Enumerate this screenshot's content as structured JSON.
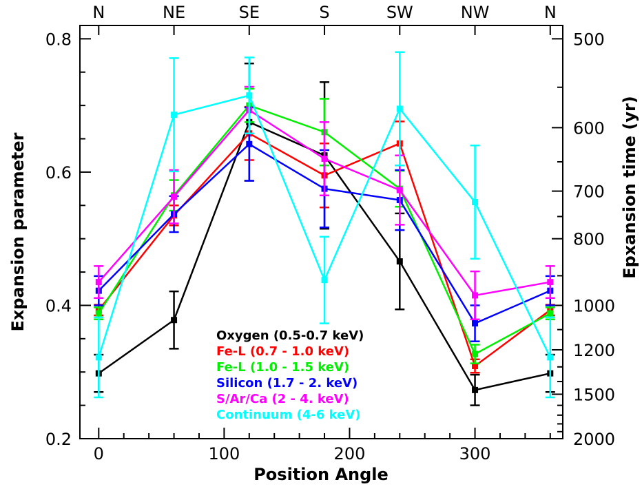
{
  "chart_data": {
    "type": "line",
    "xlabel": "Position Angle",
    "ylabel": "Expansion parameter",
    "y2label": "Epxansion time (yr)",
    "xlim": [
      -15,
      370
    ],
    "ylim": [
      0.2,
      0.82
    ],
    "x_ticks": [
      "0",
      "100",
      "200",
      "300"
    ],
    "y_ticks": [
      "0.2",
      "0.4",
      "0.6",
      "0.8"
    ],
    "top_ticks": [
      {
        "x": 0,
        "label": "N"
      },
      {
        "x": 60,
        "label": "NE"
      },
      {
        "x": 120,
        "label": "SE"
      },
      {
        "x": 180,
        "label": "S"
      },
      {
        "x": 240,
        "label": "SW"
      },
      {
        "x": 300,
        "label": "NW"
      },
      {
        "x": 360,
        "label": "N"
      }
    ],
    "right_ticks": [
      {
        "value": 500,
        "label": "500"
      },
      {
        "value": 600,
        "label": "600"
      },
      {
        "value": 700,
        "label": "700"
      },
      {
        "value": 800,
        "label": "800"
      },
      {
        "value": 1000,
        "label": "1000"
      },
      {
        "value": 1200,
        "label": "1200"
      },
      {
        "value": 1500,
        "label": "1500"
      },
      {
        "value": 2000,
        "label": "2000"
      }
    ],
    "grid": false,
    "legend_position": "bottom-center",
    "series": [
      {
        "name": "Oxygen (0.5-0.7 keV)",
        "color": "#000000",
        "x": [
          0,
          60,
          120,
          180,
          240,
          300,
          360
        ],
        "y": [
          0.298,
          0.378,
          0.675,
          0.625,
          0.466,
          0.273,
          0.298
        ],
        "err": [
          0.028,
          0.043,
          0.088,
          0.11,
          0.072,
          0.023,
          0.028
        ]
      },
      {
        "name": "Fe-L (0.7 - 1.0 keV)",
        "color": "#ff0000",
        "x": [
          0,
          60,
          120,
          180,
          240,
          300,
          360
        ],
        "y": [
          0.393,
          0.535,
          0.658,
          0.595,
          0.643,
          0.309,
          0.393
        ],
        "err": [
          0.008,
          0.015,
          0.04,
          0.048,
          0.033,
          0.01,
          0.008
        ]
      },
      {
        "name": "Fe-L (1.0 - 1.5 keV)",
        "color": "#00ee00",
        "x": [
          0,
          60,
          120,
          180,
          240,
          300,
          360
        ],
        "y": [
          0.388,
          0.565,
          0.7,
          0.66,
          0.575,
          0.327,
          0.388
        ],
        "err": [
          0.009,
          0.023,
          0.025,
          0.05,
          0.027,
          0.014,
          0.009
        ]
      },
      {
        "name": "Silicon (1.7 - 2. keV)",
        "color": "#0000ff",
        "x": [
          0,
          60,
          120,
          180,
          240,
          300,
          360
        ],
        "y": [
          0.422,
          0.537,
          0.642,
          0.575,
          0.558,
          0.373,
          0.422
        ],
        "err": [
          0.022,
          0.027,
          0.055,
          0.058,
          0.045,
          0.027,
          0.022
        ]
      },
      {
        "name": "S/Ar/Ca (2 - 4. keV)",
        "color": "#ff00ff",
        "x": [
          0,
          60,
          120,
          180,
          240,
          300,
          360
        ],
        "y": [
          0.435,
          0.563,
          0.693,
          0.62,
          0.573,
          0.415,
          0.435
        ],
        "err": [
          0.024,
          0.04,
          0.035,
          0.055,
          0.052,
          0.036,
          0.024
        ]
      },
      {
        "name": "Continuum (4-6 keV)",
        "color": "#00ffff",
        "x": [
          0,
          60,
          120,
          180,
          240,
          300,
          360
        ],
        "y": [
          0.322,
          0.686,
          0.715,
          0.438,
          0.695,
          0.555,
          0.322
        ],
        "err": [
          0.06,
          0.085,
          0.057,
          0.065,
          0.085,
          0.085,
          0.06
        ]
      }
    ]
  }
}
